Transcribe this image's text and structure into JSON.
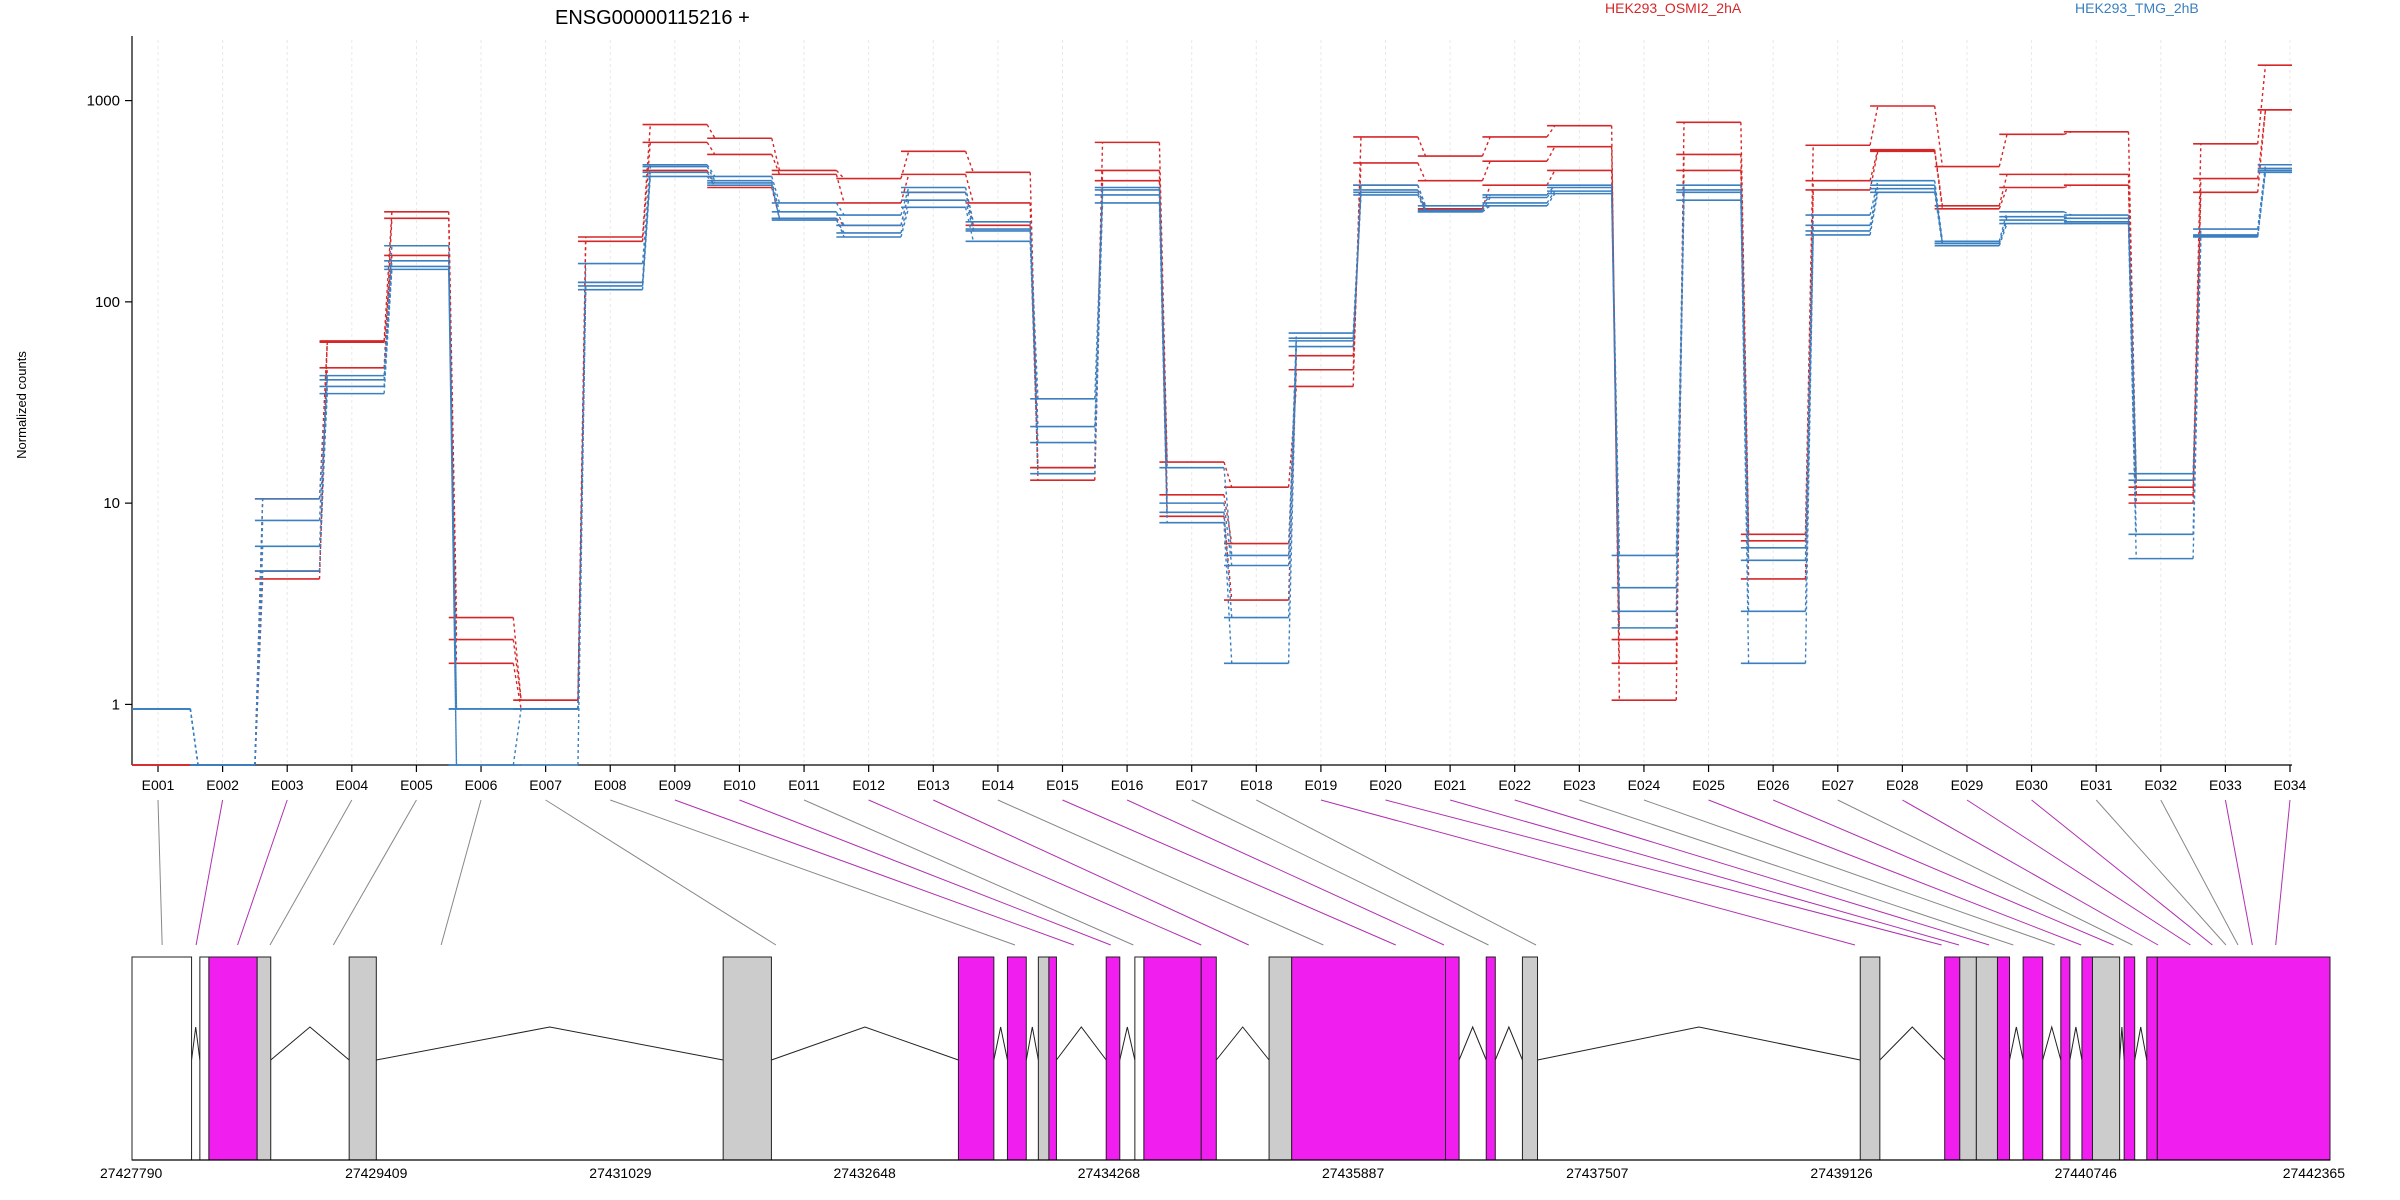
{
  "chart_data": {
    "type": "line",
    "title": "ENSG00000115216 +",
    "ylabel": "Normalized counts",
    "yscale": "log",
    "ylim": [
      0.5,
      2000
    ],
    "y_ticks": [
      {
        "v": 1,
        "label": "1"
      },
      {
        "v": 10,
        "label": "10"
      },
      {
        "v": 100,
        "label": "100"
      },
      {
        "v": 1000,
        "label": "1000"
      }
    ],
    "grid": "vertical",
    "legend": [
      "HEK293_OSMI2_2hA",
      "HEK293_TMG_2hB"
    ],
    "categories": [
      "E001",
      "E002",
      "E003",
      "E004",
      "E005",
      "E006",
      "E007",
      "E008",
      "E009",
      "E010",
      "E011",
      "E012",
      "E013",
      "E014",
      "E015",
      "E016",
      "E017",
      "E018",
      "E019",
      "E020",
      "E021",
      "E022",
      "E023",
      "E024",
      "E025",
      "E026",
      "E027",
      "E028",
      "E029",
      "E030",
      "E031",
      "E032",
      "E033",
      "E034"
    ],
    "colors": {
      "red": "#d62728",
      "blue": "#3a7fc0",
      "exon_magenta": "#f01ff0",
      "exon_gray": "#cccccc",
      "link_gray": "#888888",
      "link_magenta": "#b030b0"
    },
    "series": [
      {
        "group": "red",
        "values": [
          0.5,
          0.5,
          4.2,
          64,
          280,
          2.7,
          1.05,
          210,
          760,
          650,
          450,
          410,
          560,
          440,
          15,
          620,
          16,
          12,
          38,
          660,
          530,
          660,
          750,
          1.05,
          780,
          7,
          600,
          940,
          470,
          680,
          700,
          12,
          610,
          1500
        ]
      },
      {
        "group": "red",
        "values": [
          0.5,
          0.5,
          4.6,
          47,
          260,
          2.1,
          1.05,
          200,
          620,
          540,
          430,
          310,
          430,
          310,
          13,
          450,
          11,
          6.3,
          46,
          490,
          400,
          500,
          590,
          2.1,
          540,
          6.5,
          400,
          570,
          300,
          430,
          430,
          10,
          410,
          900
        ]
      },
      {
        "group": "red",
        "values": [
          0.5,
          0.5,
          10.5,
          63,
          170,
          1.6,
          0.95,
          125,
          450,
          370,
          260,
          240,
          350,
          240,
          15,
          400,
          8.6,
          3.3,
          54,
          380,
          290,
          380,
          450,
          1.6,
          450,
          4.2,
          360,
          560,
          290,
          370,
          380,
          11,
          350,
          900
        ]
      },
      {
        "group": "blue",
        "values": [
          0.95,
          0.5,
          10.5,
          43,
          190,
          0.95,
          0.95,
          155,
          480,
          420,
          310,
          270,
          370,
          250,
          33,
          370,
          15,
          5.5,
          70,
          380,
          300,
          340,
          380,
          5.5,
          380,
          6,
          270,
          400,
          200,
          280,
          270,
          14,
          230,
          480
        ]
      },
      {
        "group": "blue",
        "values": [
          0.95,
          0.5,
          8.2,
          41,
          160,
          0.95,
          0.95,
          125,
          470,
          400,
          280,
          240,
          350,
          230,
          24,
          360,
          10,
          4.9,
          66,
          360,
          285,
          330,
          370,
          3.8,
          360,
          5.2,
          240,
          380,
          195,
          265,
          260,
          13,
          215,
          450
        ]
      },
      {
        "group": "blue",
        "values": [
          0.95,
          0.5,
          6.1,
          35,
          145,
          0.5,
          0.95,
          115,
          420,
          380,
          260,
          210,
          295,
          200,
          20,
          310,
          8,
          1.6,
          60,
          340,
          280,
          300,
          345,
          2.9,
          320,
          2.9,
          215,
          350,
          190,
          245,
          245,
          7,
          210,
          440
        ]
      },
      {
        "group": "blue",
        "values": [
          0.95,
          0.5,
          4.6,
          38,
          150,
          0.5,
          0.5,
          120,
          440,
          390,
          255,
          220,
          320,
          225,
          14,
          340,
          9,
          2.7,
          64,
          350,
          280,
          310,
          355,
          2.4,
          350,
          1.6,
          225,
          365,
          195,
          255,
          250,
          5.3,
          212,
          460
        ]
      }
    ],
    "genomic_axis": {
      "start": 27427790,
      "end": 27442365,
      "tick_labels": [
        "27427790",
        "27429409",
        "27431029",
        "27432648",
        "27434268",
        "27435887",
        "27437507",
        "27439126",
        "27440746",
        "27442365"
      ]
    },
    "exon_pos": [
      27427990,
      27428215,
      27428490,
      27428705,
      27429125,
      27429840,
      27432060,
      27433645,
      27434035,
      27434280,
      27434430,
      27434880,
      27435195,
      27435690,
      27436170,
      27436490,
      27436785,
      27437100,
      27439215,
      27439790,
      27439905,
      27440105,
      27440265,
      27440540,
      27440715,
      27440930,
      27441055,
      27441225,
      27441440,
      27441585,
      27441675,
      27441755,
      27441850,
      27442005
    ],
    "exon_kind": [
      0,
      1,
      1,
      0,
      0,
      0,
      0,
      0,
      1,
      1,
      0,
      1,
      1,
      0,
      1,
      1,
      0,
      0,
      1,
      1,
      1,
      1,
      0,
      0,
      1,
      1,
      0,
      1,
      1,
      1,
      0,
      0,
      1,
      1
    ],
    "gene_blocks": [
      {
        "s": 27427790,
        "e": 27428185,
        "f": "w"
      },
      {
        "s": 27428240,
        "e": 27428300,
        "f": "w"
      },
      {
        "s": 27428300,
        "e": 27428620,
        "f": "m"
      },
      {
        "s": 27428620,
        "e": 27428710,
        "f": "g"
      },
      {
        "s": 27429230,
        "e": 27429410,
        "f": "g"
      },
      {
        "s": 27431710,
        "e": 27432030,
        "f": "g"
      },
      {
        "s": 27433270,
        "e": 27433505,
        "f": "m"
      },
      {
        "s": 27433595,
        "e": 27433720,
        "f": "m"
      },
      {
        "s": 27433800,
        "e": 27433870,
        "f": "g"
      },
      {
        "s": 27433870,
        "e": 27433920,
        "f": "m"
      },
      {
        "s": 27434250,
        "e": 27434340,
        "f": "m"
      },
      {
        "s": 27434440,
        "e": 27434500,
        "f": "w"
      },
      {
        "s": 27434500,
        "e": 27434880,
        "f": "m"
      },
      {
        "s": 27434880,
        "e": 27434980,
        "f": "m"
      },
      {
        "s": 27435330,
        "e": 27435480,
        "f": "g"
      },
      {
        "s": 27435480,
        "e": 27436500,
        "f": "m"
      },
      {
        "s": 27436500,
        "e": 27436590,
        "f": "m"
      },
      {
        "s": 27436770,
        "e": 27436830,
        "f": "m"
      },
      {
        "s": 27437010,
        "e": 27437110,
        "f": "g"
      },
      {
        "s": 27439250,
        "e": 27439380,
        "f": "g"
      },
      {
        "s": 27439810,
        "e": 27439910,
        "f": "m"
      },
      {
        "s": 27439910,
        "e": 27440020,
        "f": "g"
      },
      {
        "s": 27440020,
        "e": 27440160,
        "f": "g"
      },
      {
        "s": 27440160,
        "e": 27440240,
        "f": "m"
      },
      {
        "s": 27440330,
        "e": 27440460,
        "f": "m"
      },
      {
        "s": 27440580,
        "e": 27440640,
        "f": "m"
      },
      {
        "s": 27440720,
        "e": 27440790,
        "f": "m"
      },
      {
        "s": 27440790,
        "e": 27440970,
        "f": "g"
      },
      {
        "s": 27441000,
        "e": 27441070,
        "f": "m"
      },
      {
        "s": 27441150,
        "e": 27441220,
        "f": "m"
      },
      {
        "s": 27441220,
        "e": 27442365,
        "f": "m"
      }
    ]
  }
}
